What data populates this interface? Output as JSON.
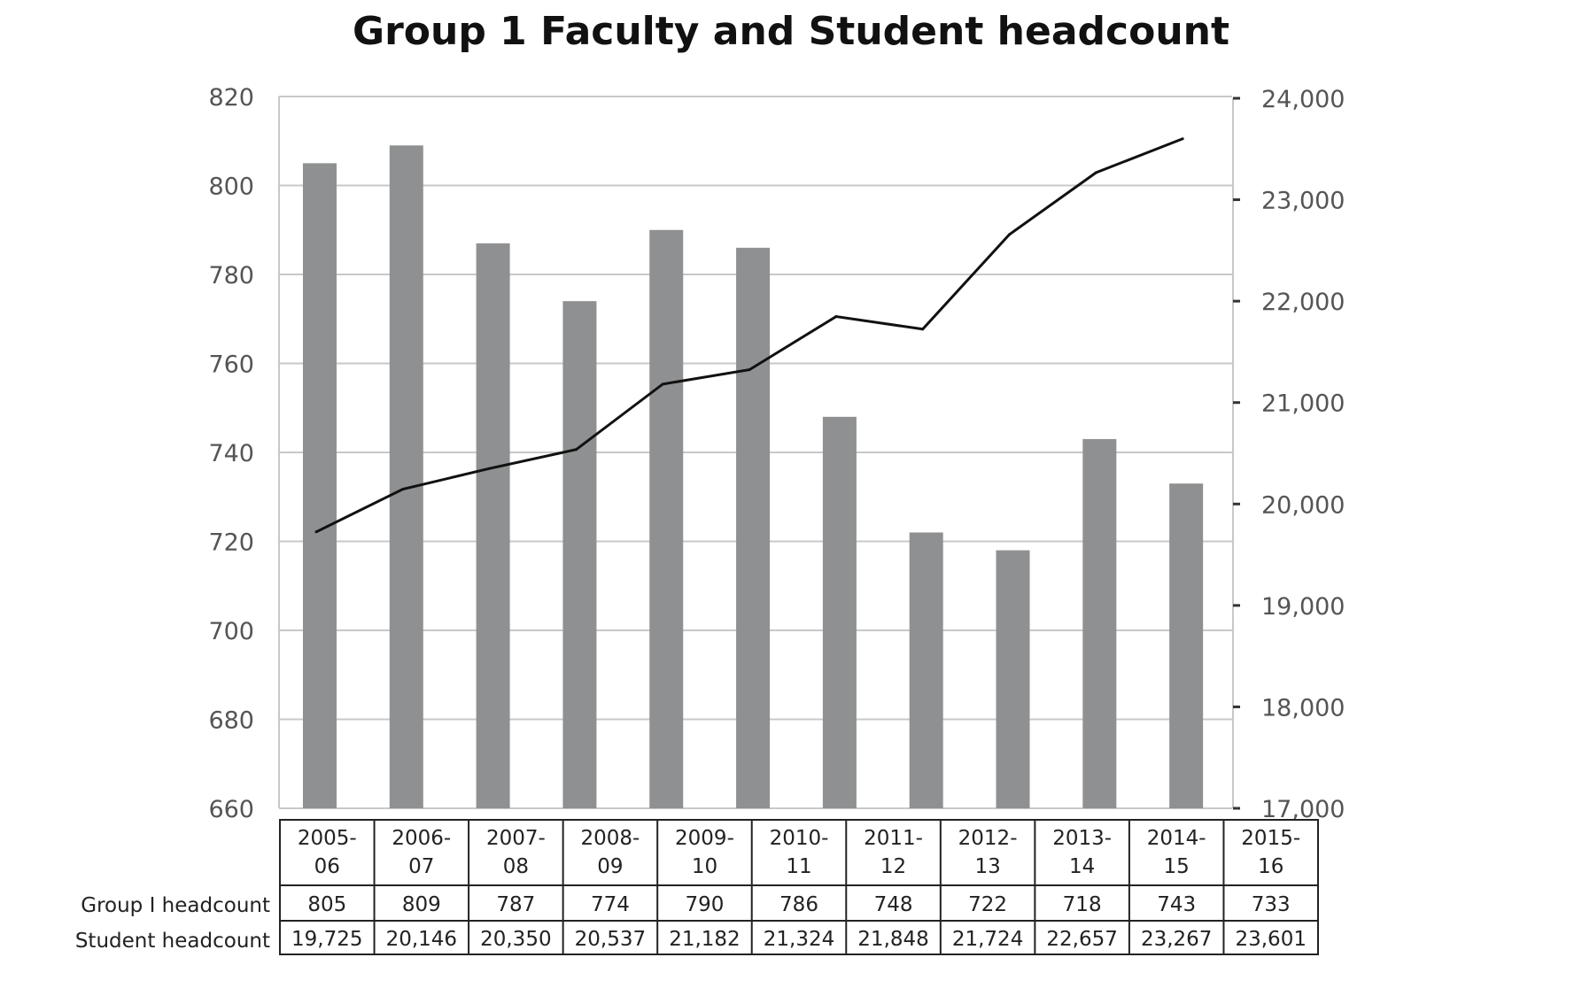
{
  "chart_data": {
    "type": "bar+line",
    "title": "Group 1 Faculty and Student headcount",
    "categories": [
      "2005-06",
      "2006-07",
      "2007-08",
      "2008-09",
      "2009-10",
      "2010-11",
      "2011-12",
      "2012-13",
      "2013-14",
      "2014-15",
      "2015-16"
    ],
    "category_lines": [
      [
        "2005-",
        "06"
      ],
      [
        "2006-",
        "07"
      ],
      [
        "2007-",
        "08"
      ],
      [
        "2008-",
        "09"
      ],
      [
        "2009-",
        "10"
      ],
      [
        "2010-",
        "11"
      ],
      [
        "2011-",
        "12"
      ],
      [
        "2012-",
        "13"
      ],
      [
        "2013-",
        "14"
      ],
      [
        "2014-",
        "15"
      ],
      [
        "2015-",
        "16"
      ]
    ],
    "series": [
      {
        "name": "Group I headcount",
        "type": "bar",
        "axis": "left",
        "color": "#8e9091",
        "values": [
          805,
          809,
          787,
          774,
          790,
          786,
          748,
          722,
          718,
          743,
          733
        ],
        "labels": [
          "805",
          "809",
          "787",
          "774",
          "790",
          "786",
          "748",
          "722",
          "718",
          "743",
          "733"
        ]
      },
      {
        "name": "Student headcount",
        "type": "line",
        "axis": "right",
        "color": "#111111",
        "values": [
          19725,
          20146,
          20350,
          20537,
          21182,
          21324,
          21848,
          21724,
          22657,
          23267,
          23601
        ],
        "labels": [
          "19,725",
          "20,146",
          "20,350",
          "20,537",
          "21,182",
          "21,324",
          "21,848",
          "21,724",
          "22,657",
          "23,267",
          "23,601"
        ]
      }
    ],
    "left_axis": {
      "ylim": [
        660,
        820
      ],
      "ticks": [
        "820",
        "800",
        "780",
        "760",
        "740",
        "720",
        "700",
        "680",
        "660"
      ]
    },
    "right_axis": {
      "ylim": [
        17000,
        24000
      ],
      "ticks": [
        "24,000",
        "23,000",
        "22,000",
        "21,000",
        "20,000",
        "19,000",
        "18,000",
        "17,000"
      ]
    },
    "grid": true,
    "legend": "data table below chart"
  }
}
